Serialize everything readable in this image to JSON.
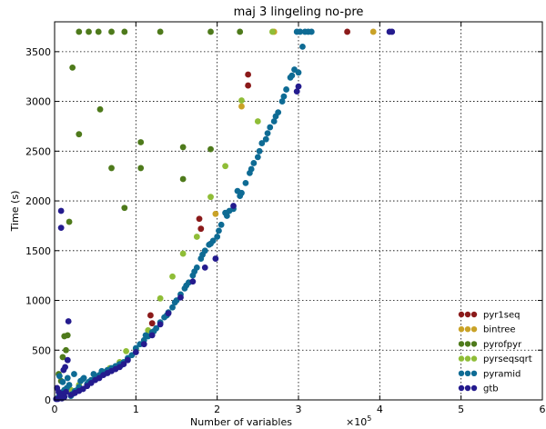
{
  "chart_data": {
    "type": "scatter",
    "title": "maj 3 lingeling no-pre",
    "xlabel": "Number of variables",
    "xlabel_multiplier": "×10",
    "xlabel_multiplier_exp": "5",
    "ylabel": "Time (s)",
    "xlim": [
      0,
      6
    ],
    "ylim": [
      0,
      3800
    ],
    "x_ticks": [
      "0",
      "1",
      "2",
      "3",
      "4",
      "5",
      "6"
    ],
    "y_ticks": [
      "0",
      "500",
      "1000",
      "1500",
      "2000",
      "2500",
      "3000",
      "3500"
    ],
    "grid": true,
    "legend_position": "lower-right",
    "series": [
      {
        "name": "pyr1seq",
        "color": "#8b1a1a",
        "points": [
          [
            1.18,
            850
          ],
          [
            1.2,
            770
          ],
          [
            1.78,
            1820
          ],
          [
            1.8,
            1720
          ],
          [
            2.38,
            3270
          ],
          [
            2.38,
            3160
          ],
          [
            3.6,
            3700
          ]
        ]
      },
      {
        "name": "bintree",
        "color": "#c9a227",
        "points": [
          [
            1.98,
            1870
          ],
          [
            2.3,
            2950
          ],
          [
            2.7,
            3700
          ],
          [
            3.92,
            3700
          ]
        ]
      },
      {
        "name": "pyrofpyr",
        "color": "#4e7a1b",
        "points": [
          [
            0.08,
            190
          ],
          [
            0.12,
            640
          ],
          [
            0.16,
            650
          ],
          [
            0.18,
            1790
          ],
          [
            0.22,
            3340
          ],
          [
            0.3,
            2670
          ],
          [
            0.3,
            3700
          ],
          [
            0.42,
            3700
          ],
          [
            0.54,
            3700
          ],
          [
            0.56,
            2920
          ],
          [
            0.7,
            3700
          ],
          [
            0.7,
            2330
          ],
          [
            0.86,
            3700
          ],
          [
            0.86,
            1930
          ],
          [
            1.06,
            2590
          ],
          [
            1.06,
            2330
          ],
          [
            1.3,
            3700
          ],
          [
            1.58,
            2540
          ],
          [
            1.58,
            2220
          ],
          [
            1.92,
            3700
          ],
          [
            1.92,
            2520
          ],
          [
            2.28,
            3700
          ],
          [
            0.05,
            260
          ],
          [
            0.1,
            430
          ],
          [
            0.14,
            500
          ]
        ]
      },
      {
        "name": "pyrseqsqrt",
        "color": "#8fbd37",
        "points": [
          [
            0.3,
            150
          ],
          [
            0.5,
            220
          ],
          [
            0.68,
            320
          ],
          [
            0.88,
            490
          ],
          [
            1.0,
            510
          ],
          [
            1.3,
            1020
          ],
          [
            1.58,
            1470
          ],
          [
            1.92,
            2040
          ],
          [
            2.3,
            3010
          ],
          [
            2.68,
            3700
          ],
          [
            0.2,
            100
          ],
          [
            0.6,
            280
          ],
          [
            0.8,
            380
          ],
          [
            1.15,
            700
          ],
          [
            1.45,
            1240
          ],
          [
            1.75,
            1640
          ],
          [
            2.1,
            2350
          ],
          [
            2.5,
            2800
          ]
        ]
      },
      {
        "name": "pyramid",
        "color": "#0e6b94",
        "points": [
          [
            0.02,
            10
          ],
          [
            0.05,
            30
          ],
          [
            0.08,
            60
          ],
          [
            0.1,
            80
          ],
          [
            0.12,
            100
          ],
          [
            0.15,
            120
          ],
          [
            0.18,
            150
          ],
          [
            0.2,
            40
          ],
          [
            0.22,
            60
          ],
          [
            0.25,
            90
          ],
          [
            0.28,
            100
          ],
          [
            0.3,
            130
          ],
          [
            0.32,
            190
          ],
          [
            0.35,
            210
          ],
          [
            0.4,
            160
          ],
          [
            0.42,
            180
          ],
          [
            0.45,
            200
          ],
          [
            0.5,
            230
          ],
          [
            0.55,
            250
          ],
          [
            0.6,
            270
          ],
          [
            0.65,
            300
          ],
          [
            0.7,
            320
          ],
          [
            0.75,
            340
          ],
          [
            0.8,
            360
          ],
          [
            0.85,
            380
          ],
          [
            0.9,
            420
          ],
          [
            0.95,
            450
          ],
          [
            1.0,
            520
          ],
          [
            1.05,
            560
          ],
          [
            1.1,
            600
          ],
          [
            1.15,
            640
          ],
          [
            1.2,
            680
          ],
          [
            1.25,
            720
          ],
          [
            1.3,
            780
          ],
          [
            1.35,
            830
          ],
          [
            1.4,
            880
          ],
          [
            1.45,
            930
          ],
          [
            1.5,
            1000
          ],
          [
            1.55,
            1060
          ],
          [
            1.6,
            1120
          ],
          [
            1.65,
            1180
          ],
          [
            1.7,
            1250
          ],
          [
            1.75,
            1330
          ],
          [
            1.8,
            1420
          ],
          [
            1.85,
            1500
          ],
          [
            1.9,
            1560
          ],
          [
            1.95,
            1600
          ],
          [
            2.0,
            1640
          ],
          [
            2.05,
            1760
          ],
          [
            2.1,
            1880
          ],
          [
            2.15,
            1900
          ],
          [
            2.2,
            1920
          ],
          [
            2.25,
            2100
          ],
          [
            2.3,
            2080
          ],
          [
            2.35,
            2180
          ],
          [
            2.4,
            2280
          ],
          [
            2.45,
            2380
          ],
          [
            2.5,
            2440
          ],
          [
            2.55,
            2580
          ],
          [
            2.6,
            2620
          ],
          [
            2.65,
            2740
          ],
          [
            2.7,
            2800
          ],
          [
            2.75,
            2890
          ],
          [
            2.8,
            3000
          ],
          [
            2.85,
            3120
          ],
          [
            2.9,
            3240
          ],
          [
            2.95,
            3320
          ],
          [
            3.0,
            3290
          ],
          [
            3.05,
            3550
          ],
          [
            2.98,
            3700
          ],
          [
            3.02,
            3700
          ],
          [
            3.08,
            3700
          ],
          [
            3.12,
            3700
          ],
          [
            3.16,
            3700
          ],
          [
            0.06,
            240
          ],
          [
            0.1,
            180
          ],
          [
            0.16,
            220
          ],
          [
            0.24,
            260
          ],
          [
            0.36,
            220
          ],
          [
            0.48,
            260
          ],
          [
            0.58,
            290
          ],
          [
            0.72,
            310
          ],
          [
            0.82,
            350
          ],
          [
            1.12,
            650
          ],
          [
            1.22,
            690
          ],
          [
            1.38,
            850
          ],
          [
            1.48,
            980
          ],
          [
            1.62,
            1150
          ],
          [
            1.72,
            1290
          ],
          [
            1.82,
            1460
          ],
          [
            1.92,
            1570
          ],
          [
            2.02,
            1700
          ],
          [
            2.12,
            1850
          ],
          [
            2.28,
            2050
          ],
          [
            2.42,
            2320
          ],
          [
            2.52,
            2500
          ],
          [
            2.62,
            2680
          ],
          [
            2.72,
            2850
          ],
          [
            2.82,
            3050
          ],
          [
            2.92,
            3260
          ]
        ]
      },
      {
        "name": "gtb",
        "color": "#241b8e",
        "points": [
          [
            0.02,
            0
          ],
          [
            0.04,
            5
          ],
          [
            0.06,
            20
          ],
          [
            0.08,
            1900
          ],
          [
            0.08,
            1730
          ],
          [
            0.1,
            60
          ],
          [
            0.12,
            30
          ],
          [
            0.14,
            80
          ],
          [
            0.16,
            400
          ],
          [
            0.17,
            790
          ],
          [
            0.2,
            50
          ],
          [
            0.25,
            70
          ],
          [
            0.3,
            90
          ],
          [
            0.35,
            110
          ],
          [
            0.4,
            140
          ],
          [
            0.45,
            170
          ],
          [
            0.5,
            200
          ],
          [
            0.55,
            220
          ],
          [
            0.6,
            250
          ],
          [
            0.65,
            270
          ],
          [
            0.7,
            290
          ],
          [
            0.75,
            310
          ],
          [
            0.8,
            330
          ],
          [
            0.85,
            360
          ],
          [
            0.9,
            400
          ],
          [
            1.0,
            480
          ],
          [
            1.1,
            560
          ],
          [
            1.2,
            650
          ],
          [
            1.3,
            760
          ],
          [
            1.4,
            870
          ],
          [
            1.55,
            1030
          ],
          [
            1.7,
            1190
          ],
          [
            1.85,
            1330
          ],
          [
            1.98,
            1420
          ],
          [
            2.2,
            1950
          ],
          [
            2.98,
            3100
          ],
          [
            3.0,
            3150
          ],
          [
            4.12,
            3700
          ],
          [
            4.15,
            3700
          ],
          [
            0.03,
            120
          ],
          [
            0.05,
            80
          ],
          [
            0.07,
            40
          ],
          [
            0.09,
            15
          ],
          [
            0.11,
            300
          ],
          [
            0.13,
            330
          ]
        ]
      }
    ]
  }
}
